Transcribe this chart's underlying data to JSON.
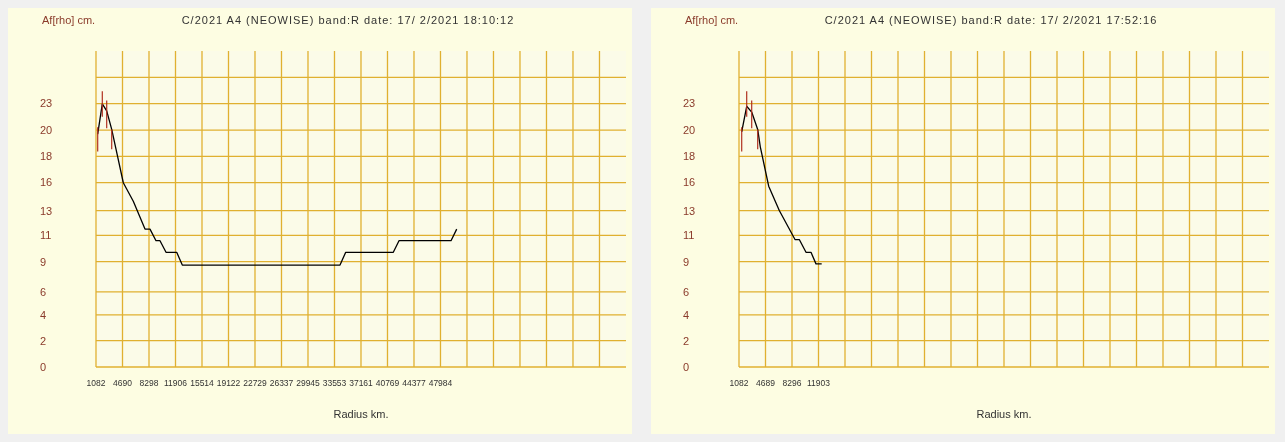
{
  "chart_data": [
    {
      "type": "line",
      "title": "C/2021 A4 (NEOWISE) band:R date: 17/ 2/2021 18:10:12",
      "xlabel": "Radius km.",
      "ylabel": "Af[rho] cm.",
      "grid": true,
      "xlim": [
        1082,
        73242
      ],
      "ylim": [
        0,
        27.27
      ],
      "xticks": [
        1082,
        4690,
        8298,
        11906,
        15514,
        19122,
        22729,
        26337,
        29945,
        33553,
        37161,
        40769,
        44377,
        47984,
        {
          "value": 51592,
          "label": null
        },
        {
          "value": 55200,
          "label": null
        },
        {
          "value": 58808,
          "label": null
        },
        {
          "value": 62416,
          "label": null
        },
        {
          "value": 66024,
          "label": null
        },
        {
          "value": 69632,
          "label": null
        }
      ],
      "yticks": [
        0,
        {
          "value": 2.27,
          "label": "2"
        },
        {
          "value": 4.49,
          "label": "4"
        },
        {
          "value": 6.49,
          "label": "6"
        },
        {
          "value": 9.09,
          "label": "9"
        },
        {
          "value": 11.36,
          "label": "11"
        },
        {
          "value": 13.49,
          "label": "13"
        },
        {
          "value": 15.91,
          "label": "16"
        },
        {
          "value": 18.18,
          "label": "18"
        },
        {
          "value": 20.45,
          "label": "20"
        },
        {
          "value": 22.73,
          "label": "23"
        },
        {
          "value": 25,
          "label": null
        }
      ],
      "series": [
        {
          "color": "#000000",
          "x": [
            1313,
            1940,
            2539,
            3220,
            3805,
            4799,
            6160,
            7753,
            8434,
            9251,
            9796,
            10613,
            12070,
            12832,
            34303,
            35079,
            41560,
            42336,
            49416,
            50192
          ],
          "values": [
            20.1,
            22.7,
            22.1,
            20.5,
            18.8,
            15.9,
            14.3,
            11.9,
            11.9,
            10.9,
            10.9,
            9.9,
            9.9,
            8.8,
            8.8,
            9.9,
            9.9,
            10.9,
            10.9,
            11.9
          ],
          "errors": [
            [
              18.6,
              20.7
            ],
            [
              21.6,
              23.8
            ],
            [
              20.6,
              23.0
            ],
            [
              18.8,
              20.5
            ],
            null,
            null,
            null,
            null,
            null,
            null,
            null,
            null,
            null,
            null,
            null,
            null,
            null,
            null,
            null,
            null
          ]
        }
      ]
    },
    {
      "type": "line",
      "title": "C/2021 A4 (NEOWISE) band:R date: 17/ 2/2021 17:52:16",
      "xlabel": "Radius km.",
      "ylabel": "Af[rho] cm.",
      "grid": true,
      "xlim": [
        1082,
        73222
      ],
      "ylim": [
        0,
        27.27
      ],
      "xticks": [
        1082,
        4689,
        8296,
        11903,
        {
          "value": 15510,
          "label": null
        },
        {
          "value": 19117,
          "label": null
        },
        {
          "value": 22724,
          "label": null
        },
        {
          "value": 26331,
          "label": null
        },
        {
          "value": 29938,
          "label": null
        },
        {
          "value": 33545,
          "label": null
        },
        {
          "value": 37152,
          "label": null
        },
        {
          "value": 40759,
          "label": null
        },
        {
          "value": 44366,
          "label": null
        },
        {
          "value": 47973,
          "label": null
        },
        {
          "value": 51580,
          "label": null
        },
        {
          "value": 55187,
          "label": null
        },
        {
          "value": 58794,
          "label": null
        },
        {
          "value": 62401,
          "label": null
        },
        {
          "value": 66008,
          "label": null
        },
        {
          "value": 69615,
          "label": null
        }
      ],
      "yticks": [
        0,
        {
          "value": 2.27,
          "label": "2"
        },
        {
          "value": 4.49,
          "label": "4"
        },
        {
          "value": 6.49,
          "label": "6"
        },
        {
          "value": 9.09,
          "label": "9"
        },
        {
          "value": 11.36,
          "label": "11"
        },
        {
          "value": 13.49,
          "label": "13"
        },
        {
          "value": 15.91,
          "label": "16"
        },
        {
          "value": 18.18,
          "label": "18"
        },
        {
          "value": 20.45,
          "label": "20"
        },
        {
          "value": 22.73,
          "label": "23"
        },
        {
          "value": 25,
          "label": null
        }
      ],
      "series": [
        {
          "color": "#000000",
          "x": [
            1450,
            2130,
            2810,
            3627,
            3981,
            5124,
            6567,
            8704,
            9289,
            10201,
            10881,
            11562,
            12338
          ],
          "values": [
            20.3,
            22.5,
            22.0,
            20.5,
            19.0,
            15.6,
            13.5,
            11.0,
            11.0,
            9.9,
            9.9,
            8.9,
            8.9
          ],
          "errors": [
            [
              18.6,
              20.7
            ],
            [
              21.6,
              23.8
            ],
            [
              20.6,
              23.0
            ],
            [
              18.8,
              20.5
            ],
            null,
            null,
            null,
            null,
            null,
            null,
            null,
            null,
            null
          ]
        }
      ]
    }
  ]
}
